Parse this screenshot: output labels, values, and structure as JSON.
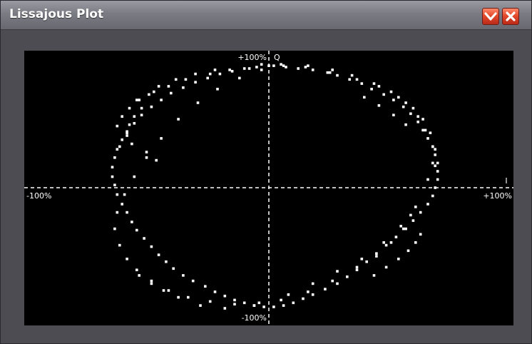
{
  "window": {
    "title": "Lissajous Plot",
    "minimize_icon": "chevron-down-icon",
    "close_icon": "close-icon",
    "accent_color": "#e34a2c"
  },
  "chart_data": {
    "type": "scatter",
    "title": "",
    "xlabel": "I",
    "ylabel": "Q",
    "xlim": [
      -100,
      100
    ],
    "ylim": [
      -100,
      100
    ],
    "x_tick_labels": [
      "-100%",
      "+100%"
    ],
    "y_tick_labels": [
      "-100%",
      "+100%"
    ],
    "grid": false,
    "axes_style": "dashed crosshair",
    "background": "#000000",
    "point_color": "#ffffff",
    "series": [
      {
        "x": [
          2,
          -3,
          7,
          12,
          18,
          24,
          28,
          33,
          38,
          42,
          47,
          51,
          55,
          58,
          61,
          63,
          65,
          67,
          68,
          69,
          69,
          69,
          68,
          67,
          65,
          62,
          59,
          56,
          52,
          48,
          44,
          40,
          36,
          32,
          28,
          23,
          18,
          14,
          10,
          6,
          2,
          -2,
          -6,
          -10,
          -14,
          -18,
          -22,
          -26,
          -31,
          -35,
          -39,
          -42,
          -45,
          -48,
          -51,
          -54,
          -56,
          -58,
          -60,
          -62,
          -63,
          -64,
          -64,
          -63,
          -62,
          -60,
          -58,
          -55,
          -52,
          -48,
          -44,
          -40,
          -35,
          -30,
          -25,
          -20,
          -15,
          -10,
          -5,
          0,
          5,
          -8,
          -16,
          -24,
          -34,
          -41,
          -47,
          -53,
          -57,
          -60,
          -62,
          15,
          25,
          36,
          45,
          53,
          59,
          63,
          66,
          68,
          67,
          65,
          60,
          54,
          47,
          38,
          28,
          18,
          8,
          -4,
          -14,
          -24,
          -33,
          -41,
          -48,
          -54,
          -58,
          -61,
          -63,
          -62,
          -59,
          -55,
          -50,
          -44,
          -37,
          -29,
          -21,
          -12,
          -3,
          6,
          16,
          26,
          34,
          43,
          50,
          56,
          61,
          64,
          67,
          68,
          -52,
          -55,
          -57,
          -58,
          -56,
          -50,
          -46,
          -58,
          -61,
          -54,
          -49,
          43,
          48,
          53,
          57,
          60,
          62,
          39,
          45,
          51,
          56,
          -45,
          -38,
          -30,
          -22,
          58,
          55,
          50,
          44,
          36,
          26,
          16,
          5,
          -6,
          -18,
          -28,
          -37,
          -43,
          -48,
          -53
        ],
        "y": [
          89,
          90,
          88,
          87,
          86,
          84,
          82,
          79,
          76,
          72,
          68,
          64,
          59,
          54,
          48,
          42,
          36,
          30,
          24,
          18,
          12,
          6,
          0,
          -6,
          -12,
          -18,
          -24,
          -30,
          -36,
          -42,
          -48,
          -54,
          -60,
          -65,
          -70,
          -74,
          -78,
          -81,
          -84,
          -86,
          -87,
          -87,
          -86,
          -84,
          -82,
          -79,
          -76,
          -72,
          -68,
          -64,
          -59,
          -54,
          -49,
          -43,
          -37,
          -31,
          -25,
          -18,
          -12,
          -5,
          2,
          8,
          15,
          22,
          28,
          35,
          41,
          47,
          53,
          59,
          64,
          69,
          73,
          77,
          80,
          83,
          85,
          87,
          88,
          89,
          90,
          87,
          86,
          83,
          79,
          74,
          70,
          64,
          58,
          52,
          45,
          88,
          84,
          79,
          74,
          66,
          58,
          50,
          40,
          28,
          18,
          6,
          -14,
          -28,
          -40,
          -52,
          -61,
          -70,
          -78,
          -84,
          -85,
          -83,
          -80,
          -75,
          -68,
          -60,
          -52,
          -42,
          -30,
          -18,
          -5,
          8,
          22,
          36,
          50,
          62,
          72,
          80,
          86,
          89,
          89,
          86,
          82,
          76,
          70,
          62,
          52,
          42,
          30,
          16,
          58,
          52,
          46,
          40,
          32,
          26,
          20,
          38,
          30,
          64,
          68,
          -64,
          -58,
          -52,
          -46,
          -40,
          -34,
          66,
          60,
          53,
          46,
          74,
          79,
          83,
          86,
          -20,
          -30,
          -40,
          -50,
          -58,
          -68,
          -76,
          -82,
          -86,
          -88,
          -86,
          -80,
          -75,
          -70,
          -64
        ]
      }
    ]
  }
}
